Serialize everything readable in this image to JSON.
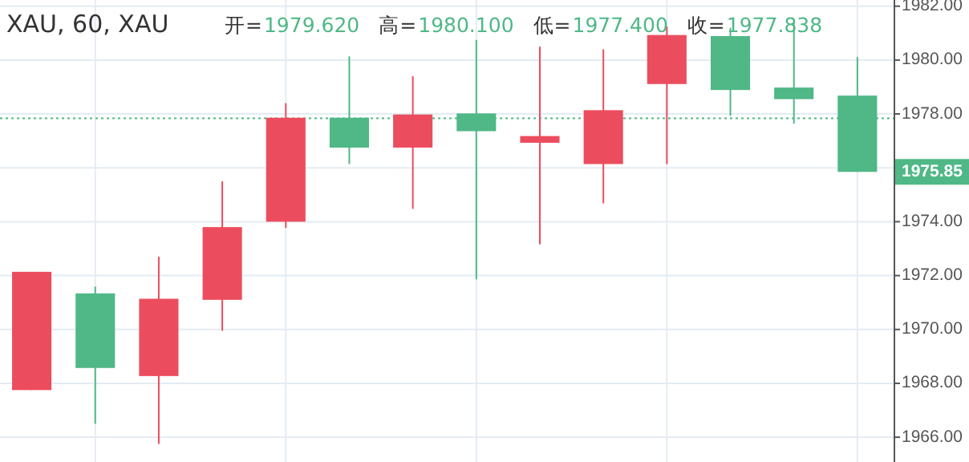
{
  "chart_data": {
    "type": "candlestick",
    "title": "XAU, 60, XAU",
    "annotations": [
      "开=",
      "1979.620",
      "高=",
      "1980.100",
      "低=",
      "1977.400",
      "收=",
      "1977.838",
      "1975.85"
    ],
    "categories": [
      null,
      null,
      null,
      null,
      null,
      null,
      null,
      null,
      null,
      null,
      null,
      null,
      null,
      null
    ],
    "ohlc": [
      [
        1967.75,
        1972.14,
        1967.75,
        1972.14
      ],
      [
        1971.34,
        1971.59,
        1966.5,
        1968.57
      ],
      [
        1968.27,
        1972.7,
        1965.75,
        1971.14
      ],
      [
        1971.1,
        1975.5,
        1969.95,
        1973.8
      ],
      [
        1974.0,
        1978.4,
        1973.77,
        1977.86
      ],
      [
        1977.86,
        1980.14,
        1976.14,
        1976.75
      ],
      [
        1976.75,
        1979.4,
        1974.48,
        1977.98
      ],
      [
        1978.02,
        1980.75,
        1971.86,
        1977.36
      ],
      [
        1976.93,
        1980.5,
        1973.16,
        1977.18
      ],
      [
        1976.14,
        1980.4,
        1974.68,
        1978.14
      ],
      [
        1979.11,
        1981.25,
        1976.14,
        1980.93
      ],
      [
        1980.89,
        1981.2,
        1977.93,
        1978.89
      ],
      [
        1978.98,
        1981.4,
        1977.64,
        1978.55
      ],
      [
        1978.68,
        1980.11,
        1975.85,
        1975.85
      ]
    ],
    "colors": [
      "#ec4d5e",
      "#4fb886",
      "#ec4d5e",
      "#ec4d5e",
      "#ec4d5e",
      "#4fb886",
      "#ec4d5e",
      "#4fb886",
      "#ec4d5e",
      "#ec4d5e",
      "#ec4d5e",
      "#4fb886",
      "#4fb886",
      "#4fb886"
    ],
    "ylim": [
      1965.08,
      1982.23
    ],
    "yticks": [
      {
        "value": 1966,
        "label": "1966.00"
      },
      {
        "value": 1968,
        "label": "1968.00"
      },
      {
        "value": 1970,
        "label": "1970.00"
      },
      {
        "value": 1972,
        "label": "1972.00"
      },
      {
        "value": 1974,
        "label": "1974.00"
      },
      {
        "value": 1976,
        "label": null
      },
      {
        "value": 1978,
        "label": "1978.00"
      },
      {
        "value": 1980,
        "label": "1980.00"
      },
      {
        "value": 1982,
        "label": "1982.00"
      }
    ],
    "tick_labels": "y",
    "grid": true,
    "ref_lines": [
      {
        "axis": "y",
        "value": 1977.84,
        "color": "#4fb886",
        "line_style": "dotted"
      }
    ]
  }
}
